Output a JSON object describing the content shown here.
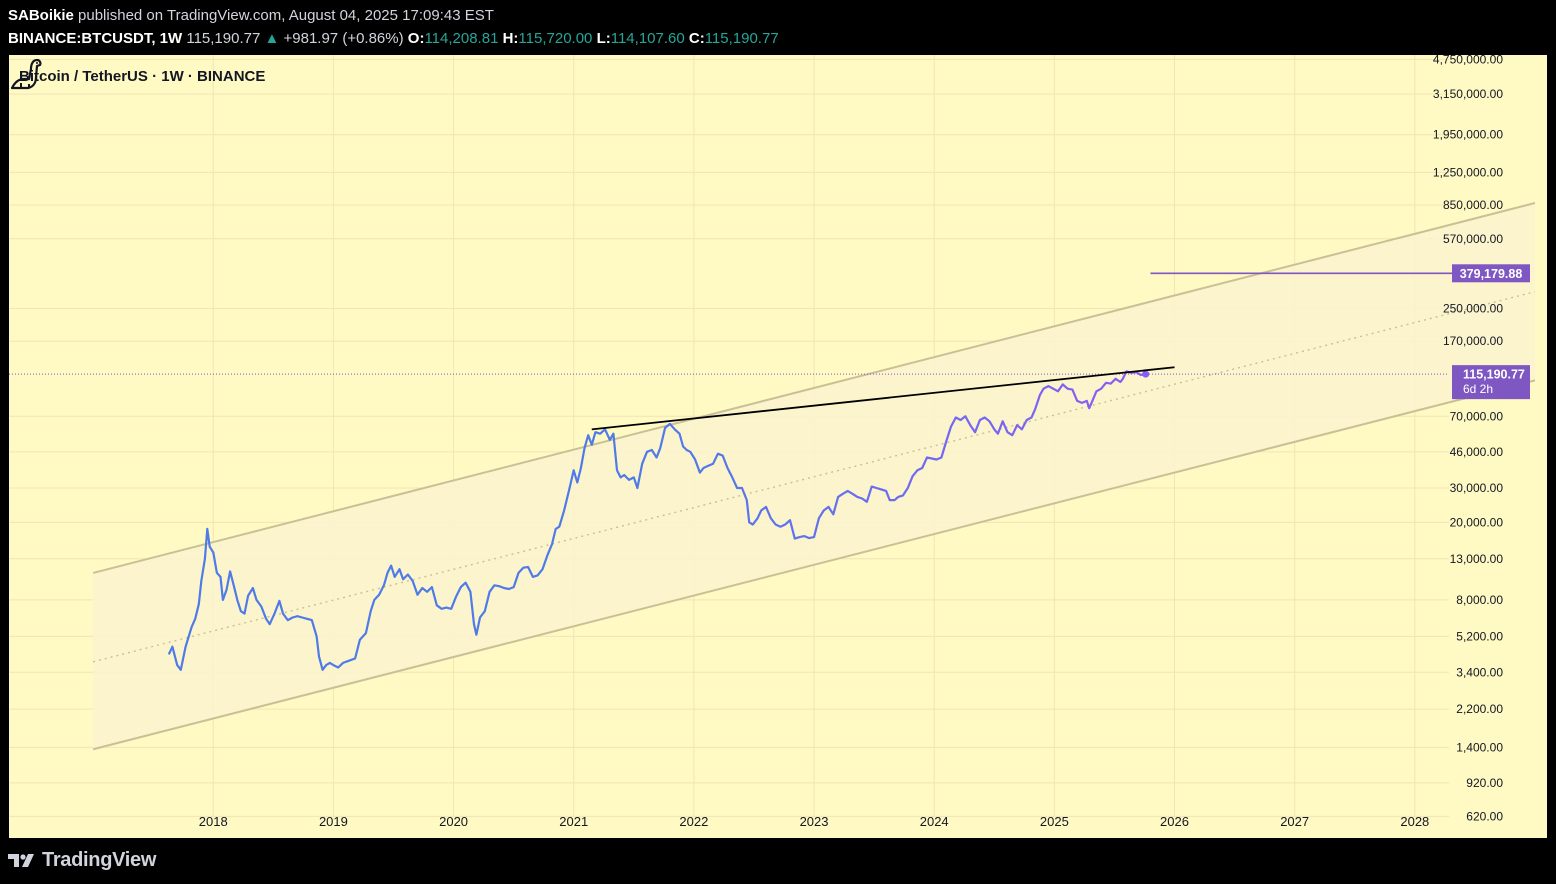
{
  "header": {
    "author": "SABoikie",
    "published_text": "published on TradingView.com, August 04, 2025 17:09:43 EST",
    "symbol": "BINANCE:BTCUSDT",
    "interval": "1W",
    "last_price": "115,190.77",
    "change_arrow": "▲",
    "change": "+981.97 (+0.86%)",
    "o_label": "O:",
    "o_value": "114,208.81",
    "h_label": "H:",
    "h_value": "115,720.00",
    "l_label": "L:",
    "l_value": "114,107.60",
    "c_label": "C:",
    "c_value": "115,190.77"
  },
  "chart_title": "Bitcoin / TetherUS · 1W · BINANCE",
  "footer": {
    "brand": "TradingView"
  },
  "colors": {
    "background": "#fff9c4",
    "price_line": "#4f7be8",
    "price_line_late": "#8a5cf5",
    "channel": "#c9c095",
    "channel_fill": "#faf3cf",
    "trendline": "#000000",
    "target_line": "#7e57c2",
    "label_bg": "#7e57c2",
    "up": "#26a69a"
  },
  "chart_data": {
    "type": "line",
    "scale": "log",
    "title": "Bitcoin / TetherUS · 1W · BINANCE",
    "x_ticks": [
      "2018",
      "2019",
      "2020",
      "2021",
      "2022",
      "2023",
      "2024",
      "2025",
      "2026",
      "2027",
      "2028"
    ],
    "y_ticks": [
      "4,750,000.00",
      "3,150,000.00",
      "1,950,000.00",
      "1,250,000.00",
      "850,000.00",
      "570,000.00",
      "250,000.00",
      "170,000.00",
      "70,000.00",
      "46,000.00",
      "30,000.00",
      "20,000.00",
      "13,000.00",
      "8,000.00",
      "5,200.00",
      "3,400.00",
      "2,200.00",
      "1,400.00",
      "920.00",
      "620.00"
    ],
    "ylim": [
      480,
      5000000
    ],
    "xlim": [
      2016.3,
      2029.1
    ],
    "series": [
      {
        "values": [
          [
            2017.63,
            4200
          ],
          [
            2017.66,
            4600
          ],
          [
            2017.7,
            3700
          ],
          [
            2017.73,
            3500
          ],
          [
            2017.77,
            4600
          ],
          [
            2017.82,
            5800
          ],
          [
            2017.85,
            6400
          ],
          [
            2017.88,
            7600
          ],
          [
            2017.9,
            10000
          ],
          [
            2017.93,
            13000
          ],
          [
            2017.95,
            18500
          ],
          [
            2017.97,
            15000
          ],
          [
            2018.0,
            14000
          ],
          [
            2018.03,
            11000
          ],
          [
            2018.06,
            10500
          ],
          [
            2018.08,
            8000
          ],
          [
            2018.11,
            9000
          ],
          [
            2018.14,
            11200
          ],
          [
            2018.17,
            9500
          ],
          [
            2018.2,
            8000
          ],
          [
            2018.23,
            7000
          ],
          [
            2018.26,
            6800
          ],
          [
            2018.29,
            8400
          ],
          [
            2018.33,
            9200
          ],
          [
            2018.36,
            8000
          ],
          [
            2018.4,
            7400
          ],
          [
            2018.44,
            6400
          ],
          [
            2018.47,
            6000
          ],
          [
            2018.51,
            6800
          ],
          [
            2018.55,
            7900
          ],
          [
            2018.58,
            6800
          ],
          [
            2018.62,
            6300
          ],
          [
            2018.66,
            6500
          ],
          [
            2018.7,
            6600
          ],
          [
            2018.74,
            6500
          ],
          [
            2018.78,
            6400
          ],
          [
            2018.82,
            6300
          ],
          [
            2018.86,
            5200
          ],
          [
            2018.88,
            4100
          ],
          [
            2018.91,
            3500
          ],
          [
            2018.94,
            3700
          ],
          [
            2018.97,
            3800
          ],
          [
            2019.0,
            3700
          ],
          [
            2019.04,
            3600
          ],
          [
            2019.08,
            3800
          ],
          [
            2019.13,
            3900
          ],
          [
            2019.18,
            4000
          ],
          [
            2019.22,
            5000
          ],
          [
            2019.27,
            5400
          ],
          [
            2019.31,
            7000
          ],
          [
            2019.34,
            8000
          ],
          [
            2019.38,
            8500
          ],
          [
            2019.42,
            9500
          ],
          [
            2019.45,
            11000
          ],
          [
            2019.48,
            12000
          ],
          [
            2019.51,
            10500
          ],
          [
            2019.55,
            11500
          ],
          [
            2019.58,
            10200
          ],
          [
            2019.62,
            10800
          ],
          [
            2019.66,
            10000
          ],
          [
            2019.7,
            8500
          ],
          [
            2019.74,
            9200
          ],
          [
            2019.78,
            8800
          ],
          [
            2019.82,
            9300
          ],
          [
            2019.86,
            7500
          ],
          [
            2019.9,
            7200
          ],
          [
            2019.94,
            7300
          ],
          [
            2019.98,
            7200
          ],
          [
            2020.02,
            8300
          ],
          [
            2020.06,
            9300
          ],
          [
            2020.1,
            9800
          ],
          [
            2020.14,
            8800
          ],
          [
            2020.17,
            6000
          ],
          [
            2020.19,
            5300
          ],
          [
            2020.22,
            6500
          ],
          [
            2020.26,
            7000
          ],
          [
            2020.3,
            8800
          ],
          [
            2020.34,
            9500
          ],
          [
            2020.38,
            9400
          ],
          [
            2020.42,
            9200
          ],
          [
            2020.46,
            9100
          ],
          [
            2020.5,
            9300
          ],
          [
            2020.54,
            11000
          ],
          [
            2020.58,
            11700
          ],
          [
            2020.62,
            11800
          ],
          [
            2020.66,
            10500
          ],
          [
            2020.7,
            10700
          ],
          [
            2020.74,
            11500
          ],
          [
            2020.78,
            13500
          ],
          [
            2020.82,
            15500
          ],
          [
            2020.85,
            18500
          ],
          [
            2020.88,
            19000
          ],
          [
            2020.92,
            23000
          ],
          [
            2020.96,
            29000
          ],
          [
            2021.0,
            37000
          ],
          [
            2021.03,
            32000
          ],
          [
            2021.06,
            38000
          ],
          [
            2021.09,
            48000
          ],
          [
            2021.12,
            56000
          ],
          [
            2021.15,
            50000
          ],
          [
            2021.18,
            58000
          ],
          [
            2021.22,
            57000
          ],
          [
            2021.26,
            60000
          ],
          [
            2021.3,
            53000
          ],
          [
            2021.33,
            57000
          ],
          [
            2021.36,
            37000
          ],
          [
            2021.39,
            34000
          ],
          [
            2021.42,
            35000
          ],
          [
            2021.46,
            33000
          ],
          [
            2021.5,
            34000
          ],
          [
            2021.53,
            30000
          ],
          [
            2021.57,
            40000
          ],
          [
            2021.61,
            46000
          ],
          [
            2021.65,
            47000
          ],
          [
            2021.69,
            43000
          ],
          [
            2021.72,
            48000
          ],
          [
            2021.76,
            61000
          ],
          [
            2021.8,
            64000
          ],
          [
            2021.84,
            60000
          ],
          [
            2021.88,
            57000
          ],
          [
            2021.91,
            49000
          ],
          [
            2021.94,
            47000
          ],
          [
            2021.97,
            46000
          ],
          [
            2022.01,
            42000
          ],
          [
            2022.05,
            36000
          ],
          [
            2022.08,
            38000
          ],
          [
            2022.12,
            39000
          ],
          [
            2022.16,
            40000
          ],
          [
            2022.2,
            45000
          ],
          [
            2022.24,
            44000
          ],
          [
            2022.28,
            38000
          ],
          [
            2022.32,
            34000
          ],
          [
            2022.36,
            30000
          ],
          [
            2022.4,
            30000
          ],
          [
            2022.44,
            26000
          ],
          [
            2022.46,
            20000
          ],
          [
            2022.49,
            19500
          ],
          [
            2022.53,
            21000
          ],
          [
            2022.56,
            23000
          ],
          [
            2022.6,
            24000
          ],
          [
            2022.64,
            21000
          ],
          [
            2022.68,
            19500
          ],
          [
            2022.72,
            19000
          ],
          [
            2022.76,
            19500
          ],
          [
            2022.8,
            20500
          ],
          [
            2022.84,
            16500
          ],
          [
            2022.88,
            16800
          ],
          [
            2022.92,
            17000
          ],
          [
            2022.96,
            16600
          ],
          [
            2023.0,
            16800
          ],
          [
            2023.04,
            21000
          ],
          [
            2023.08,
            23000
          ],
          [
            2023.12,
            24000
          ],
          [
            2023.16,
            22000
          ],
          [
            2023.2,
            27000
          ],
          [
            2023.24,
            28000
          ],
          [
            2023.28,
            29000
          ],
          [
            2023.32,
            28000
          ],
          [
            2023.36,
            27000
          ],
          [
            2023.4,
            26500
          ],
          [
            2023.44,
            25500
          ],
          [
            2023.48,
            30500
          ],
          [
            2023.52,
            30000
          ],
          [
            2023.56,
            29500
          ],
          [
            2023.6,
            29000
          ],
          [
            2023.63,
            26000
          ],
          [
            2023.67,
            26000
          ],
          [
            2023.7,
            27000
          ],
          [
            2023.74,
            27500
          ],
          [
            2023.78,
            30000
          ],
          [
            2023.82,
            34500
          ],
          [
            2023.86,
            37000
          ],
          [
            2023.9,
            38000
          ],
          [
            2023.94,
            43000
          ],
          [
            2023.98,
            42500
          ],
          [
            2024.02,
            42000
          ],
          [
            2024.06,
            43000
          ],
          [
            2024.1,
            52000
          ],
          [
            2024.14,
            62000
          ],
          [
            2024.18,
            69000
          ],
          [
            2024.22,
            67000
          ],
          [
            2024.26,
            70000
          ],
          [
            2024.3,
            63000
          ],
          [
            2024.34,
            58000
          ],
          [
            2024.38,
            67000
          ],
          [
            2024.42,
            69000
          ],
          [
            2024.46,
            66000
          ],
          [
            2024.5,
            60000
          ],
          [
            2024.53,
            57000
          ],
          [
            2024.57,
            66000
          ],
          [
            2024.61,
            58000
          ],
          [
            2024.65,
            56000
          ],
          [
            2024.69,
            63000
          ],
          [
            2024.73,
            60000
          ],
          [
            2024.77,
            67000
          ],
          [
            2024.81,
            69000
          ],
          [
            2024.84,
            76000
          ],
          [
            2024.88,
            90000
          ],
          [
            2024.91,
            97000
          ],
          [
            2024.95,
            100000
          ],
          [
            2024.99,
            97000
          ],
          [
            2025.03,
            94000
          ],
          [
            2025.07,
            102000
          ],
          [
            2025.11,
            97000
          ],
          [
            2025.15,
            96000
          ],
          [
            2025.19,
            84000
          ],
          [
            2025.23,
            82000
          ],
          [
            2025.27,
            84000
          ],
          [
            2025.29,
            77000
          ],
          [
            2025.32,
            85000
          ],
          [
            2025.35,
            94000
          ],
          [
            2025.39,
            97000
          ],
          [
            2025.43,
            104000
          ],
          [
            2025.47,
            103000
          ],
          [
            2025.51,
            109000
          ],
          [
            2025.55,
            105000
          ],
          [
            2025.57,
            109000
          ],
          [
            2025.6,
            119000
          ],
          [
            2025.64,
            117000
          ],
          [
            2025.68,
            118000
          ],
          [
            2025.72,
            114000
          ],
          [
            2025.76,
            115190.77
          ]
        ]
      }
    ],
    "channel": {
      "upper": [
        [
          2017.0,
          11000
        ],
        [
          2029.0,
          870000
        ]
      ],
      "middle": [
        [
          2017.0,
          3850
        ],
        [
          2029.0,
          305000
        ]
      ],
      "lower": [
        [
          2017.0,
          1370
        ],
        [
          2029.0,
          107000
        ]
      ]
    },
    "trendline": [
      [
        2021.15,
        60000
      ],
      [
        2026.0,
        125000
      ]
    ],
    "target": {
      "value": 379179.88,
      "from": 2025.8,
      "label": "379,179.88"
    },
    "last_price": {
      "value": 115190.77,
      "label": "115,190.77",
      "countdown": "6d 2h"
    }
  }
}
